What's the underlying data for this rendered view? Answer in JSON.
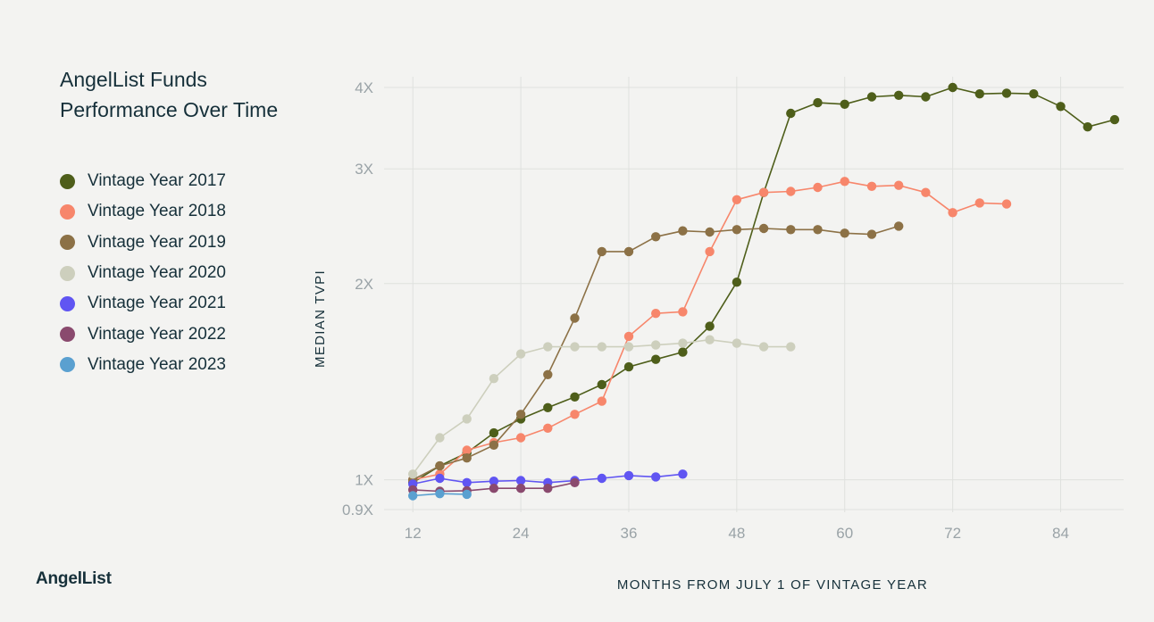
{
  "title_line1": "AngelList Funds",
  "title_line2": "Performance Over Time",
  "brand": "AngelList",
  "chart_data": {
    "type": "line",
    "title": "AngelList Funds Performance Over Time",
    "xlabel": "MONTHS FROM JULY 1 OF VINTAGE YEAR",
    "ylabel": "MEDIAN TVPI",
    "y_scale": "log",
    "xlim": [
      9,
      91
    ],
    "ylim": [
      0.9,
      4.0
    ],
    "x_ticks": [
      12,
      24,
      36,
      48,
      60,
      72,
      84
    ],
    "x_tick_labels": [
      "12",
      "24",
      "36",
      "48",
      "60",
      "72",
      "84"
    ],
    "y_ticks": [
      0.9,
      1,
      2,
      3,
      4
    ],
    "y_tick_labels": [
      "0.9X",
      "1X",
      "2X",
      "3X",
      "4X"
    ],
    "grid": true,
    "legend_position": "left",
    "series": [
      {
        "name": "Vintage Year 2017",
        "color": "#4e5e1a",
        "x": [
          12,
          15,
          18,
          21,
          24,
          27,
          30,
          33,
          36,
          39,
          42,
          45,
          48,
          51,
          54,
          57,
          60,
          63,
          66,
          69,
          72,
          75,
          78,
          81,
          84,
          87,
          90
        ],
        "y": [
          0.99,
          1.05,
          1.1,
          1.18,
          1.24,
          1.29,
          1.34,
          1.4,
          1.49,
          1.53,
          1.57,
          1.72,
          2.01,
          2.76,
          3.65,
          3.79,
          3.77,
          3.87,
          3.89,
          3.87,
          4.0,
          3.91,
          3.92,
          3.91,
          3.74,
          3.48,
          3.57
        ]
      },
      {
        "name": "Vintage Year 2018",
        "color": "#f7866b",
        "x": [
          12,
          15,
          18,
          21,
          24,
          27,
          30,
          33,
          36,
          39,
          42,
          45,
          48,
          51,
          54,
          57,
          60,
          63,
          66,
          69,
          72,
          75,
          78
        ],
        "y": [
          1.0,
          1.02,
          1.11,
          1.14,
          1.16,
          1.2,
          1.26,
          1.32,
          1.66,
          1.8,
          1.81,
          2.24,
          2.69,
          2.76,
          2.77,
          2.81,
          2.87,
          2.82,
          2.83,
          2.76,
          2.57,
          2.66,
          2.65
        ]
      },
      {
        "name": "Vintage Year 2019",
        "color": "#8c7146",
        "x": [
          12,
          15,
          18,
          21,
          24,
          27,
          30,
          33,
          36,
          39,
          42,
          45,
          48,
          51,
          54,
          57,
          60,
          63,
          66
        ],
        "y": [
          1.0,
          1.05,
          1.08,
          1.13,
          1.26,
          1.45,
          1.77,
          2.24,
          2.24,
          2.36,
          2.41,
          2.4,
          2.42,
          2.43,
          2.42,
          2.42,
          2.39,
          2.38,
          2.45
        ]
      },
      {
        "name": "Vintage Year 2020",
        "color": "#cdcfbd",
        "x": [
          12,
          15,
          18,
          21,
          24,
          27,
          30,
          33,
          36,
          39,
          42,
          45,
          48,
          51,
          54
        ],
        "y": [
          1.02,
          1.16,
          1.24,
          1.43,
          1.56,
          1.6,
          1.6,
          1.6,
          1.6,
          1.61,
          1.62,
          1.64,
          1.62,
          1.6,
          1.6
        ]
      },
      {
        "name": "Vintage Year 2021",
        "color": "#6055f2",
        "x": [
          12,
          15,
          18,
          21,
          24,
          27,
          30,
          33,
          36,
          39,
          42
        ],
        "y": [
          0.985,
          1.005,
          0.99,
          0.995,
          0.997,
          0.99,
          0.997,
          1.005,
          1.015,
          1.01,
          1.02
        ]
      },
      {
        "name": "Vintage Year 2022",
        "color": "#8a4a6e",
        "x": [
          12,
          15,
          18,
          21,
          24,
          27,
          30
        ],
        "y": [
          0.965,
          0.96,
          0.962,
          0.97,
          0.97,
          0.97,
          0.99
        ]
      },
      {
        "name": "Vintage Year 2023",
        "color": "#5aa0d0",
        "x": [
          12,
          15,
          18
        ],
        "y": [
          0.945,
          0.952,
          0.95
        ]
      }
    ]
  }
}
